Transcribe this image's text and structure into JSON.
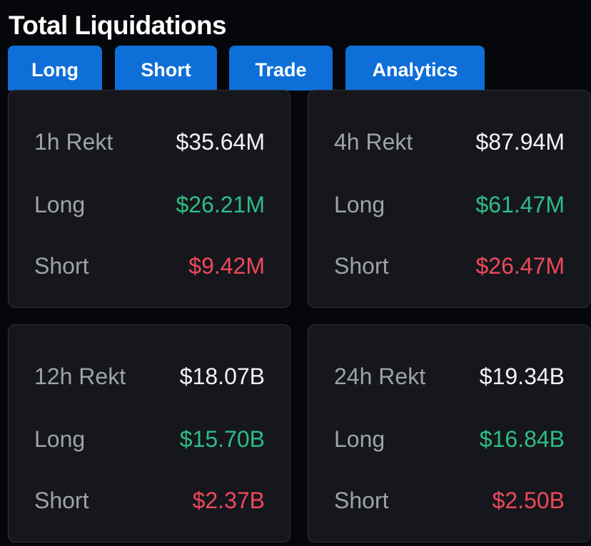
{
  "header": {
    "title": "Total Liquidations"
  },
  "tabs": [
    {
      "label": "Long"
    },
    {
      "label": "Short"
    },
    {
      "label": "Trade"
    },
    {
      "label": "Analytics"
    }
  ],
  "colors": {
    "background": "#06070b",
    "card": "#15171d",
    "card_border": "#2f323a",
    "tab": "#0e6fd8",
    "label": "#9fa2a9",
    "total": "#f2f3f5",
    "long": "#2ebd85",
    "short": "#f0485a"
  },
  "cards": [
    {
      "period_label": "1h Rekt",
      "total": "$35.64M",
      "long_label": "Long",
      "long": "$26.21M",
      "short_label": "Short",
      "short": "$9.42M"
    },
    {
      "period_label": "4h Rekt",
      "total": "$87.94M",
      "long_label": "Long",
      "long": "$61.47M",
      "short_label": "Short",
      "short": "$26.47M"
    },
    {
      "period_label": "12h Rekt",
      "total": "$18.07B",
      "long_label": "Long",
      "long": "$15.70B",
      "short_label": "Short",
      "short": "$2.37B"
    },
    {
      "period_label": "24h Rekt",
      "total": "$19.34B",
      "long_label": "Long",
      "long": "$16.84B",
      "short_label": "Short",
      "short": "$2.50B"
    }
  ]
}
